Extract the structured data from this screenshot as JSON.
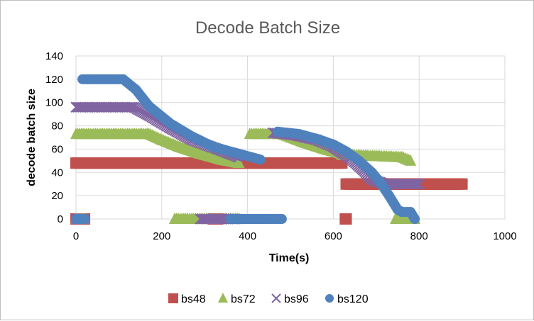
{
  "chart_data": {
    "type": "scatter",
    "title": "Decode Batch Size",
    "xlabel": "Time(s)",
    "ylabel": "decode  batch size",
    "xlim": [
      0,
      1000
    ],
    "ylim": [
      0,
      140
    ],
    "xticks": [
      "0",
      "200",
      "400",
      "600",
      "800",
      "1000"
    ],
    "yticks": [
      "0",
      "20",
      "40",
      "60",
      "80",
      "100",
      "120",
      "140"
    ],
    "grid": true,
    "legend_position": "bottom",
    "series": [
      {
        "name": "bs48",
        "color": "#c0504d",
        "marker": "square",
        "segments": [
          {
            "x": [
              0,
              20
            ],
            "y": [
              0,
              0
            ]
          },
          {
            "x": [
              0,
              620
            ],
            "y": [
              48,
              48
            ]
          },
          {
            "x": [
              320,
              330
            ],
            "y": [
              0,
              0
            ]
          },
          {
            "x": [
              628,
              630
            ],
            "y": [
              0,
              0
            ]
          },
          {
            "x": [
              630,
              900
            ],
            "y": [
              30,
              30
            ]
          }
        ]
      },
      {
        "name": "bs72",
        "color": "#9bbb59",
        "marker": "triangle",
        "segments": [
          {
            "x": [
              0,
              20
            ],
            "y": [
              0,
              0
            ]
          },
          {
            "x": [
              0,
              170,
              200,
              240,
              290,
              340,
              380
            ],
            "y": [
              73,
              73,
              68,
              62,
              56,
              51,
              48
            ]
          },
          {
            "x": [
              230,
              260,
              270,
              330,
              340,
              360,
              380
            ],
            "y": [
              0,
              0,
              0,
              0,
              0,
              0,
              0
            ]
          },
          {
            "x": [
              405,
              480,
              530,
              580,
              620
            ],
            "y": [
              73,
              73,
              66,
              60,
              56
            ]
          },
          {
            "x": [
              620,
              700,
              760,
              780
            ],
            "y": [
              55,
              54,
              53,
              50
            ]
          },
          {
            "x": [
              745,
              775,
              790
            ],
            "y": [
              0,
              0,
              0
            ]
          }
        ]
      },
      {
        "name": "bs96",
        "color": "#8064a2",
        "marker": "x",
        "segments": [
          {
            "x": [
              0,
              20
            ],
            "y": [
              0,
              0
            ]
          },
          {
            "x": [
              0,
              135,
              170,
              220,
              270,
              330,
              380
            ],
            "y": [
              96,
              96,
              89,
              78,
              68,
              60,
              53
            ]
          },
          {
            "x": [
              290,
              340,
              350,
              375
            ],
            "y": [
              0,
              0,
              0,
              0
            ]
          },
          {
            "x": [
              460,
              510,
              560,
              600,
              640,
              670,
              690,
              720,
              800
            ],
            "y": [
              74,
              72,
              68,
              62,
              52,
              42,
              34,
              30,
              30
            ]
          }
        ]
      },
      {
        "name": "bs120",
        "color": "#4f81bd",
        "marker": "circle",
        "segments": [
          {
            "x": [
              0,
              20
            ],
            "y": [
              0,
              0
            ]
          },
          {
            "x": [
              15,
              110,
              140,
              170,
              220,
              270,
              320,
              370,
              430
            ],
            "y": [
              120,
              120,
              111,
              97,
              82,
              71,
              62,
              57,
              51
            ]
          },
          {
            "x": [
              360,
              380,
              420,
              430,
              480
            ],
            "y": [
              0,
              0,
              0,
              0,
              0
            ]
          },
          {
            "x": [
              470,
              520,
              560,
              600,
              630,
              660,
              690,
              710,
              730,
              750,
              760,
              780,
              790
            ],
            "y": [
              75,
              73,
              69,
              64,
              58,
              50,
              40,
              31,
              20,
              8,
              6,
              6,
              0
            ]
          }
        ]
      }
    ]
  }
}
